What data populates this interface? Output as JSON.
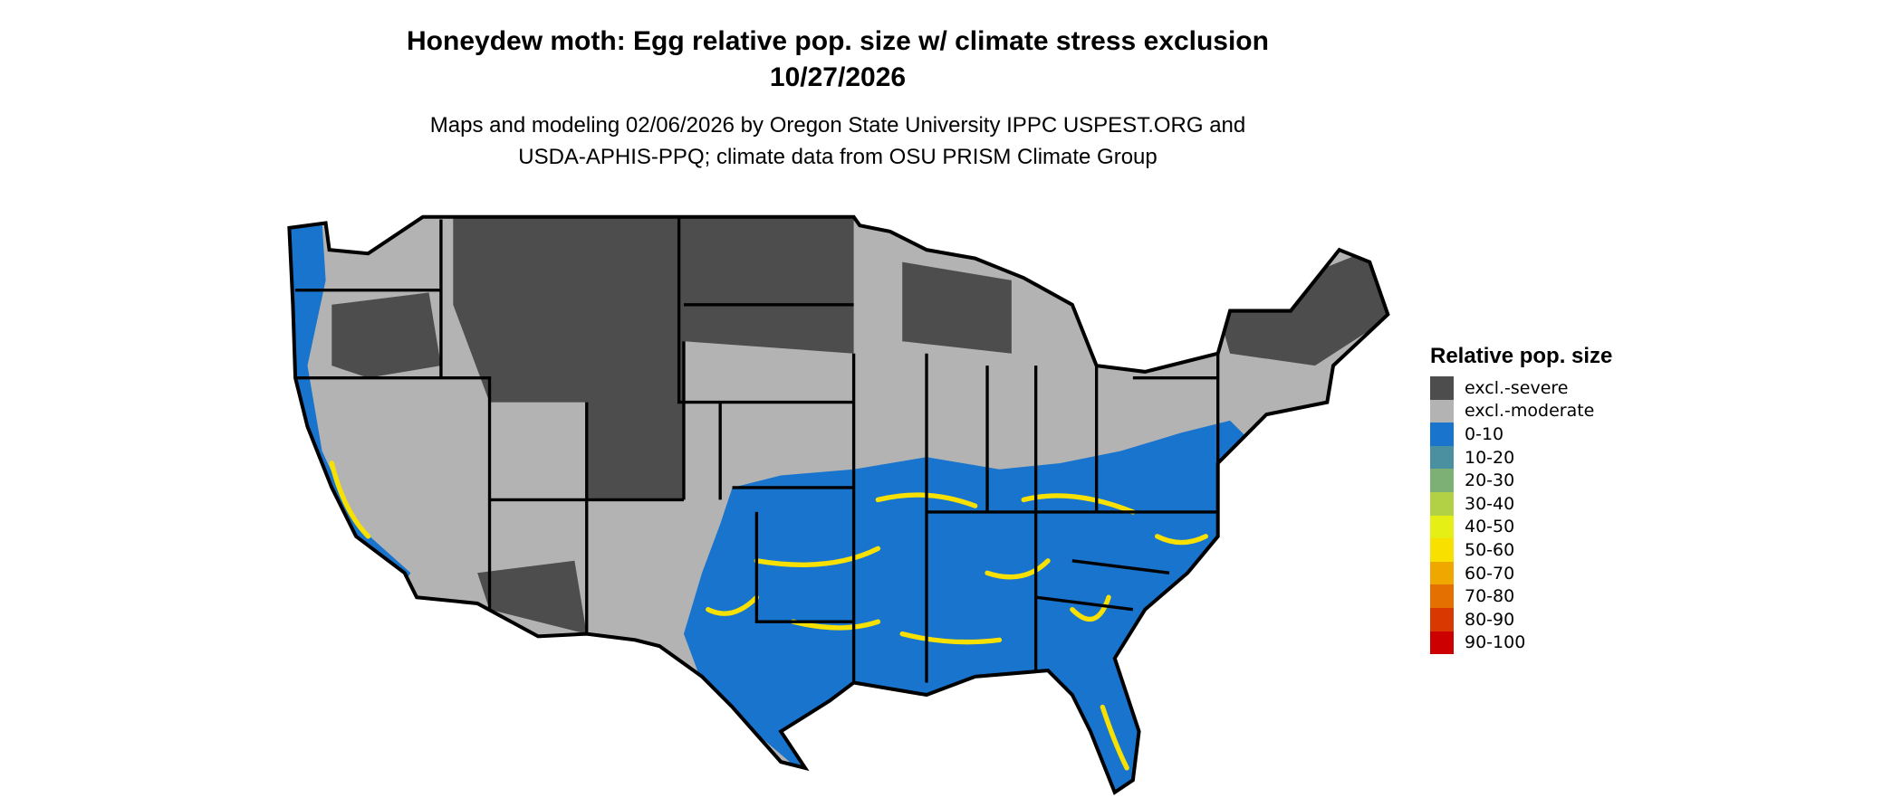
{
  "title": "Honeydew moth: Egg relative pop. size w/ climate stress exclusion",
  "date": "10/27/2026",
  "subtitle_line1": "Maps and modeling 02/06/2026 by Oregon State University IPPC USPEST.ORG and",
  "subtitle_line2": "USDA-APHIS-PPQ; climate data from OSU PRISM Climate Group",
  "legend": {
    "title": "Relative pop. size",
    "items": [
      {
        "label": "excl.-severe",
        "color": "#4d4d4d"
      },
      {
        "label": "excl.-moderate",
        "color": "#b3b3b3"
      },
      {
        "label": "0-10",
        "color": "#1874cd"
      },
      {
        "label": "10-20",
        "color": "#4a90a0"
      },
      {
        "label": "20-30",
        "color": "#7db075"
      },
      {
        "label": "30-40",
        "color": "#b2d145"
      },
      {
        "label": "40-50",
        "color": "#e5ef15"
      },
      {
        "label": "50-60",
        "color": "#f8e100"
      },
      {
        "label": "60-70",
        "color": "#f0a800"
      },
      {
        "label": "70-80",
        "color": "#e37000"
      },
      {
        "label": "80-90",
        "color": "#d93800"
      },
      {
        "label": "90-100",
        "color": "#cc0000"
      }
    ]
  },
  "map": {
    "region": "Contiguous United States",
    "dominant_classes": [
      "excl.-severe",
      "excl.-moderate",
      "0-10",
      "50-60"
    ]
  }
}
